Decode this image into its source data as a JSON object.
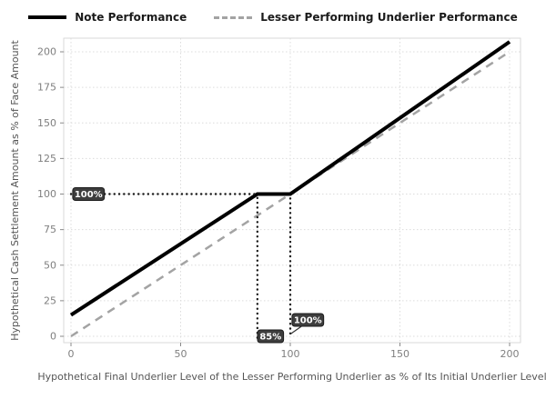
{
  "chart_data": {
    "type": "line",
    "title": "",
    "xlabel": "Hypothetical Final Underlier Level of the Lesser Performing Underlier as % of Its Initial Underlier Level",
    "ylabel": "Hypothetical Cash Settlement Amount as % of Face Amount",
    "xlim": [
      0,
      200
    ],
    "ylim": [
      0,
      210
    ],
    "x_ticks": [
      0,
      50,
      100,
      150,
      200
    ],
    "y_ticks": [
      0,
      25,
      50,
      75,
      100,
      125,
      150,
      175,
      200
    ],
    "grid": true,
    "legend_position": "top",
    "series": [
      {
        "name": "Note Performance",
        "color": "#000000",
        "style": "solid",
        "width": 4,
        "points": [
          [
            0,
            15
          ],
          [
            85,
            100
          ],
          [
            100,
            100
          ],
          [
            200,
            207
          ]
        ]
      },
      {
        "name": "Lesser Performing Underlier Performance",
        "color": "#a3a3a3",
        "style": "dashed",
        "width": 2.5,
        "points": [
          [
            0,
            0
          ],
          [
            200,
            200
          ]
        ]
      }
    ],
    "annotations": {
      "dotted_lines": [
        {
          "type": "h",
          "y": 100,
          "x0": 0,
          "x1": 85
        },
        {
          "type": "v",
          "x": 85,
          "y0": -1,
          "y1": 100
        },
        {
          "type": "v",
          "x": 100,
          "y0": 2,
          "y1": 100
        }
      ],
      "leader_lines": [
        {
          "x0": 100,
          "y0": 1.5,
          "x1": 106,
          "y1": 8
        }
      ],
      "badges": [
        {
          "label": "100%",
          "x": 8,
          "y": 100
        },
        {
          "label": "85%",
          "x": 91,
          "y": 0
        },
        {
          "label": "100%",
          "x": 108,
          "y": 11.5
        }
      ],
      "badge_bg": "#3d3d3d",
      "badge_border": "#1a1a1a",
      "badge_text_color": "#ffffff",
      "dotted_color": "#1a1a1a"
    },
    "style": {
      "grid_color": "#dcdcdc",
      "panel_border": "#d9d9d9",
      "tick_mark_color": "#8a8a8a",
      "tick_label_color": "#7f7f7f",
      "axis_title_color": "#555555",
      "legend_text_color": "#1a1a1a"
    }
  }
}
